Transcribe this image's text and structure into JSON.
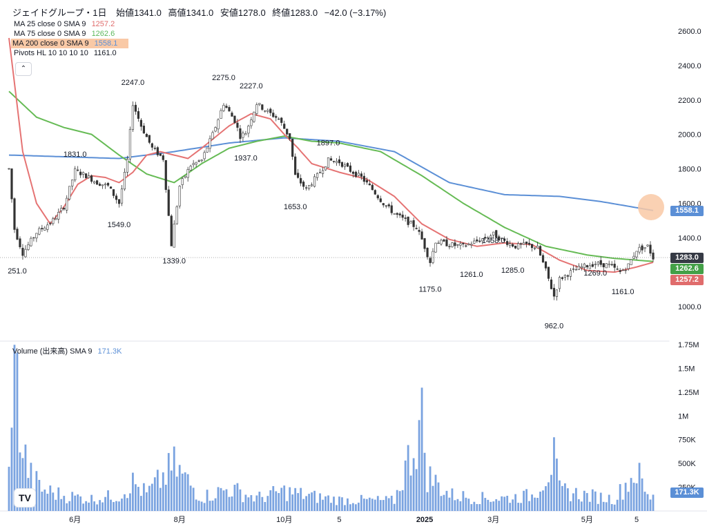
{
  "legend": {
    "symbol": "ジェイドグループ・1日",
    "open_label": "始値",
    "open": "1341.0",
    "high_label": "高値",
    "high": "1341.0",
    "low_label": "安値",
    "low": "1278.0",
    "close_label": "終値",
    "close": "1283.0",
    "change": "−42.0 (−3.17%)",
    "indicators": [
      {
        "label": "MA 25 close 0 SMA 9",
        "value": "1257.2",
        "color": "#e06c6c"
      },
      {
        "label": "MA 75 close 0 SMA 9",
        "value": "1262.6",
        "color": "#5cb85c"
      },
      {
        "label": "MA 200 close 0 SMA 9",
        "value": "1558.1",
        "color": "#5b8fd6"
      },
      {
        "label": "Pivots HL 10 10 10 10",
        "value": "1161.0",
        "color": "#131722"
      }
    ],
    "volume_label": "Volume (出来高)  SMA 9",
    "volume_value": "171.3K"
  },
  "colors": {
    "ma25": "#e57373",
    "ma75": "#66bb55",
    "ma200": "#5b8fd6",
    "candle": "#333333",
    "volume": "#7aa3e0",
    "last_price_bg": "#363a45"
  },
  "logo": "TV",
  "chart_data": {
    "type": "candlestick",
    "price_axis": {
      "ticks": [
        "2600.0",
        "2400.0",
        "2200.0",
        "2000.0",
        "1800.0",
        "1600.0",
        "1400.0",
        "1000.0"
      ],
      "range": [
        900,
        2600
      ]
    },
    "volume_axis": {
      "ticks": [
        "1.75M",
        "1.5M",
        "1.25M",
        "1M",
        "750K",
        "500K",
        "250K"
      ],
      "range": [
        0,
        1750000
      ]
    },
    "time_axis": [
      "6月",
      "8月",
      "10月",
      "5",
      "2025",
      "3月",
      "5月",
      "5"
    ],
    "price_tags": {
      "last": "1283.0",
      "ma75": "1262.6",
      "ma25": "1257.2",
      "ma200": "1558.1"
    },
    "pivot_labels": [
      {
        "text": "251.0",
        "x": 3,
        "y": 1280
      },
      {
        "text": "1831.0",
        "x": 24,
        "y": 1831
      },
      {
        "text": "2247.0",
        "x": 45,
        "y": 2247
      },
      {
        "text": "1549.0",
        "x": 40,
        "y": 1549
      },
      {
        "text": "1339.0",
        "x": 60,
        "y": 1339
      },
      {
        "text": "2275.0",
        "x": 78,
        "y": 2275
      },
      {
        "text": "2227.0",
        "x": 88,
        "y": 2227
      },
      {
        "text": "1937.0",
        "x": 86,
        "y": 1937
      },
      {
        "text": "1897.0",
        "x": 116,
        "y": 1897
      },
      {
        "text": "1653.0",
        "x": 104,
        "y": 1653
      },
      {
        "text": "1458.0",
        "x": 176,
        "y": 1458
      },
      {
        "text": "1175.0",
        "x": 153,
        "y": 1175
      },
      {
        "text": "1261.0",
        "x": 168,
        "y": 1261
      },
      {
        "text": "1285.0",
        "x": 183,
        "y": 1285
      },
      {
        "text": "1269.0",
        "x": 213,
        "y": 1269
      },
      {
        "text": "962.0",
        "x": 198,
        "y": 962
      },
      {
        "text": "1161.0",
        "x": 223,
        "y": 1161
      }
    ],
    "anchors": [
      [
        0,
        1800
      ],
      [
        2,
        1450
      ],
      [
        5,
        1310
      ],
      [
        10,
        1430
      ],
      [
        16,
        1500
      ],
      [
        20,
        1580
      ],
      [
        24,
        1790
      ],
      [
        28,
        1760
      ],
      [
        32,
        1720
      ],
      [
        36,
        1700
      ],
      [
        40,
        1600
      ],
      [
        43,
        1850
      ],
      [
        45,
        2180
      ],
      [
        48,
        2050
      ],
      [
        52,
        1920
      ],
      [
        56,
        1860
      ],
      [
        59,
        1360
      ],
      [
        62,
        1700
      ],
      [
        66,
        1820
      ],
      [
        70,
        1850
      ],
      [
        74,
        2000
      ],
      [
        78,
        2180
      ],
      [
        82,
        2080
      ],
      [
        84,
        1990
      ],
      [
        86,
        2010
      ],
      [
        90,
        2180
      ],
      [
        94,
        2130
      ],
      [
        98,
        2090
      ],
      [
        102,
        1980
      ],
      [
        104,
        1760
      ],
      [
        108,
        1680
      ],
      [
        112,
        1760
      ],
      [
        116,
        1850
      ],
      [
        120,
        1840
      ],
      [
        124,
        1790
      ],
      [
        128,
        1750
      ],
      [
        132,
        1680
      ],
      [
        136,
        1600
      ],
      [
        140,
        1540
      ],
      [
        144,
        1500
      ],
      [
        148,
        1460
      ],
      [
        150,
        1390
      ],
      [
        153,
        1260
      ],
      [
        155,
        1380
      ],
      [
        160,
        1360
      ],
      [
        165,
        1350
      ],
      [
        170,
        1380
      ],
      [
        176,
        1420
      ],
      [
        180,
        1380
      ],
      [
        184,
        1350
      ],
      [
        188,
        1360
      ],
      [
        192,
        1340
      ],
      [
        195,
        1210
      ],
      [
        198,
        1060
      ],
      [
        200,
        1160
      ],
      [
        204,
        1200
      ],
      [
        208,
        1230
      ],
      [
        213,
        1250
      ],
      [
        218,
        1240
      ],
      [
        222,
        1200
      ],
      [
        225,
        1240
      ],
      [
        228,
        1330
      ],
      [
        232,
        1350
      ],
      [
        234,
        1283
      ]
    ],
    "ma200_anchors": [
      [
        0,
        1880
      ],
      [
        20,
        1870
      ],
      [
        40,
        1860
      ],
      [
        60,
        1900
      ],
      [
        80,
        1950
      ],
      [
        100,
        1980
      ],
      [
        120,
        1960
      ],
      [
        140,
        1900
      ],
      [
        160,
        1720
      ],
      [
        180,
        1650
      ],
      [
        200,
        1640
      ],
      [
        215,
        1610
      ],
      [
        234,
        1558
      ]
    ],
    "ma75_anchors": [
      [
        0,
        2250
      ],
      [
        10,
        2100
      ],
      [
        20,
        2040
      ],
      [
        30,
        2000
      ],
      [
        40,
        1880
      ],
      [
        50,
        1770
      ],
      [
        60,
        1720
      ],
      [
        70,
        1830
      ],
      [
        80,
        1920
      ],
      [
        90,
        1960
      ],
      [
        100,
        1990
      ],
      [
        110,
        1960
      ],
      [
        120,
        1950
      ],
      [
        135,
        1900
      ],
      [
        150,
        1760
      ],
      [
        165,
        1600
      ],
      [
        180,
        1460
      ],
      [
        195,
        1350
      ],
      [
        210,
        1300
      ],
      [
        220,
        1280
      ],
      [
        234,
        1262
      ]
    ],
    "ma25_anchors": [
      [
        0,
        2560
      ],
      [
        5,
        1900
      ],
      [
        10,
        1600
      ],
      [
        15,
        1480
      ],
      [
        20,
        1580
      ],
      [
        25,
        1710
      ],
      [
        30,
        1760
      ],
      [
        35,
        1750
      ],
      [
        40,
        1720
      ],
      [
        45,
        1780
      ],
      [
        50,
        1880
      ],
      [
        55,
        1900
      ],
      [
        60,
        1880
      ],
      [
        65,
        1860
      ],
      [
        70,
        1920
      ],
      [
        80,
        2050
      ],
      [
        88,
        2120
      ],
      [
        95,
        2090
      ],
      [
        100,
        2000
      ],
      [
        105,
        1920
      ],
      [
        110,
        1830
      ],
      [
        120,
        1780
      ],
      [
        130,
        1740
      ],
      [
        140,
        1640
      ],
      [
        150,
        1480
      ],
      [
        160,
        1390
      ],
      [
        170,
        1350
      ],
      [
        180,
        1370
      ],
      [
        190,
        1360
      ],
      [
        200,
        1270
      ],
      [
        205,
        1240
      ],
      [
        210,
        1210
      ],
      [
        220,
        1200
      ],
      [
        228,
        1230
      ],
      [
        234,
        1257
      ]
    ],
    "volume_anchors": [
      [
        0,
        420000
      ],
      [
        1,
        1600000
      ],
      [
        3,
        1450000
      ],
      [
        5,
        700000
      ],
      [
        8,
        400000
      ],
      [
        12,
        250000
      ],
      [
        20,
        180000
      ],
      [
        30,
        140000
      ],
      [
        40,
        180000
      ],
      [
        45,
        330000
      ],
      [
        50,
        200000
      ],
      [
        60,
        520000
      ],
      [
        70,
        160000
      ],
      [
        80,
        260000
      ],
      [
        90,
        150000
      ],
      [
        100,
        230000
      ],
      [
        110,
        170000
      ],
      [
        120,
        130000
      ],
      [
        140,
        120000
      ],
      [
        150,
        1050000
      ],
      [
        152,
        420000
      ],
      [
        160,
        190000
      ],
      [
        170,
        150000
      ],
      [
        180,
        150000
      ],
      [
        190,
        180000
      ],
      [
        194,
        370000
      ],
      [
        198,
        600000
      ],
      [
        200,
        240000
      ],
      [
        210,
        180000
      ],
      [
        220,
        140000
      ],
      [
        228,
        470000
      ],
      [
        232,
        160000
      ],
      [
        234,
        171300
      ]
    ]
  }
}
